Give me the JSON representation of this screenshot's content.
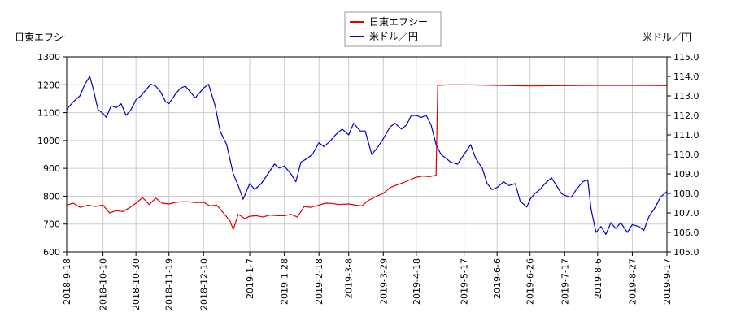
{
  "chart_data": {
    "type": "line",
    "legend_position": "top-center",
    "grid": true,
    "left_axis_title": "日東エフシー",
    "right_axis_title": "米ドル／円",
    "y_left_range": [
      600,
      1300
    ],
    "y_left_ticks": [
      "600",
      "700",
      "800",
      "900",
      "1000",
      "1100",
      "1200",
      "1300"
    ],
    "y_right_range": [
      105.0,
      115.0
    ],
    "y_right_ticks": [
      "105.0",
      "106.0",
      "107.0",
      "108.0",
      "109.0",
      "110.0",
      "111.0",
      "112.0",
      "113.0",
      "114.0",
      "115.0"
    ],
    "x_ticks": [
      "2018-9-18",
      "2018-10-10",
      "2018-10-30",
      "2018-11-19",
      "2018-12-10",
      "2019-1-7",
      "2019-1-28",
      "2019-2-18",
      "2019-3-8",
      "2019-3-29",
      "2019-4-18",
      "2019-5-17",
      "2019-6-6",
      "2019-6-26",
      "2019-7-17",
      "2019-8-6",
      "2019-8-27",
      "2019-9-17"
    ],
    "series": [
      {
        "name": "日東エフシー",
        "color": "#dd0000",
        "axis": "left",
        "points": [
          [
            "2018-9-18",
            768
          ],
          [
            "2018-9-22",
            775
          ],
          [
            "2018-9-26",
            760
          ],
          [
            "2018-10-1",
            768
          ],
          [
            "2018-10-5",
            763
          ],
          [
            "2018-10-10",
            768
          ],
          [
            "2018-10-14",
            740
          ],
          [
            "2018-10-18",
            748
          ],
          [
            "2018-10-22",
            745
          ],
          [
            "2018-10-26",
            758
          ],
          [
            "2018-10-30",
            775
          ],
          [
            "2018-11-3",
            795
          ],
          [
            "2018-11-7",
            770
          ],
          [
            "2018-11-11",
            793
          ],
          [
            "2018-11-15",
            775
          ],
          [
            "2018-11-19",
            772
          ],
          [
            "2018-11-23",
            778
          ],
          [
            "2018-11-27",
            780
          ],
          [
            "2018-12-1",
            780
          ],
          [
            "2018-12-5",
            777
          ],
          [
            "2018-12-10",
            778
          ],
          [
            "2018-12-14",
            765
          ],
          [
            "2018-12-18",
            768
          ],
          [
            "2018-12-22",
            740
          ],
          [
            "2018-12-26",
            712
          ],
          [
            "2018-12-28",
            680
          ],
          [
            "2018-12-31",
            735
          ],
          [
            "2019-1-4",
            720
          ],
          [
            "2019-1-7",
            728
          ],
          [
            "2019-1-11",
            730
          ],
          [
            "2019-1-15",
            725
          ],
          [
            "2019-1-19",
            732
          ],
          [
            "2019-1-24",
            730
          ],
          [
            "2019-1-28",
            730
          ],
          [
            "2019-2-1",
            735
          ],
          [
            "2019-2-5",
            725
          ],
          [
            "2019-2-9",
            763
          ],
          [
            "2019-2-13",
            760
          ],
          [
            "2019-2-18",
            768
          ],
          [
            "2019-2-22",
            775
          ],
          [
            "2019-2-26",
            774
          ],
          [
            "2019-3-2",
            770
          ],
          [
            "2019-3-8",
            772
          ],
          [
            "2019-3-12",
            768
          ],
          [
            "2019-3-16",
            765
          ],
          [
            "2019-3-20",
            785
          ],
          [
            "2019-3-25",
            800
          ],
          [
            "2019-3-29",
            810
          ],
          [
            "2019-4-2",
            830
          ],
          [
            "2019-4-6",
            840
          ],
          [
            "2019-4-10",
            848
          ],
          [
            "2019-4-14",
            858
          ],
          [
            "2019-4-18",
            868
          ],
          [
            "2019-4-22",
            872
          ],
          [
            "2019-4-26",
            870
          ],
          [
            "2019-4-30",
            875
          ],
          [
            "2019-5-1",
            1198
          ],
          [
            "2019-5-8",
            1200
          ],
          [
            "2019-5-17",
            1200
          ],
          [
            "2019-6-6",
            1198
          ],
          [
            "2019-6-26",
            1196
          ],
          [
            "2019-7-17",
            1197
          ],
          [
            "2019-8-6",
            1198
          ],
          [
            "2019-8-27",
            1198
          ],
          [
            "2019-9-17",
            1197
          ]
        ]
      },
      {
        "name": "米ドル／円",
        "color": "#0000cc",
        "axis": "right",
        "points": [
          [
            "2018-9-18",
            112.3
          ],
          [
            "2018-9-22",
            112.7
          ],
          [
            "2018-9-26",
            113.0
          ],
          [
            "2018-9-29",
            113.6
          ],
          [
            "2018-10-2",
            114.0
          ],
          [
            "2018-10-4",
            113.4
          ],
          [
            "2018-10-7",
            112.3
          ],
          [
            "2018-10-10",
            112.1
          ],
          [
            "2018-10-12",
            111.9
          ],
          [
            "2018-10-15",
            112.5
          ],
          [
            "2018-10-18",
            112.4
          ],
          [
            "2018-10-21",
            112.6
          ],
          [
            "2018-10-24",
            112.0
          ],
          [
            "2018-10-27",
            112.3
          ],
          [
            "2018-10-30",
            112.8
          ],
          [
            "2018-11-2",
            113.0
          ],
          [
            "2018-11-5",
            113.3
          ],
          [
            "2018-11-8",
            113.6
          ],
          [
            "2018-11-11",
            113.5
          ],
          [
            "2018-11-14",
            113.2
          ],
          [
            "2018-11-17",
            112.7
          ],
          [
            "2018-11-19",
            112.6
          ],
          [
            "2018-11-23",
            113.1
          ],
          [
            "2018-11-26",
            113.4
          ],
          [
            "2018-11-29",
            113.5
          ],
          [
            "2018-12-2",
            113.2
          ],
          [
            "2018-12-5",
            112.9
          ],
          [
            "2018-12-8",
            113.2
          ],
          [
            "2018-12-10",
            113.4
          ],
          [
            "2018-12-13",
            113.6
          ],
          [
            "2018-12-17",
            112.5
          ],
          [
            "2018-12-20",
            111.2
          ],
          [
            "2018-12-24",
            110.5
          ],
          [
            "2018-12-28",
            109.0
          ],
          [
            "2018-12-31",
            108.4
          ],
          [
            "2019-1-3",
            107.7
          ],
          [
            "2019-1-7",
            108.5
          ],
          [
            "2019-1-10",
            108.2
          ],
          [
            "2019-1-14",
            108.5
          ],
          [
            "2019-1-18",
            109.0
          ],
          [
            "2019-1-22",
            109.5
          ],
          [
            "2019-1-25",
            109.3
          ],
          [
            "2019-1-28",
            109.4
          ],
          [
            "2019-2-1",
            109.0
          ],
          [
            "2019-2-4",
            108.6
          ],
          [
            "2019-2-7",
            109.6
          ],
          [
            "2019-2-11",
            109.8
          ],
          [
            "2019-2-14",
            110.0
          ],
          [
            "2019-2-18",
            110.6
          ],
          [
            "2019-2-21",
            110.4
          ],
          [
            "2019-2-25",
            110.7
          ],
          [
            "2019-2-28",
            111.0
          ],
          [
            "2019-3-4",
            111.3
          ],
          [
            "2019-3-8",
            111.0
          ],
          [
            "2019-3-11",
            111.6
          ],
          [
            "2019-3-15",
            111.2
          ],
          [
            "2019-3-18",
            111.2
          ],
          [
            "2019-3-22",
            110.0
          ],
          [
            "2019-3-25",
            110.3
          ],
          [
            "2019-3-29",
            110.8
          ],
          [
            "2019-4-2",
            111.4
          ],
          [
            "2019-4-5",
            111.6
          ],
          [
            "2019-4-9",
            111.3
          ],
          [
            "2019-4-12",
            111.5
          ],
          [
            "2019-4-15",
            112.0
          ],
          [
            "2019-4-18",
            112.0
          ],
          [
            "2019-4-21",
            111.9
          ],
          [
            "2019-4-24",
            112.0
          ],
          [
            "2019-4-27",
            111.5
          ],
          [
            "2019-4-30",
            110.5
          ],
          [
            "2019-5-3",
            110.0
          ],
          [
            "2019-5-6",
            109.8
          ],
          [
            "2019-5-9",
            109.6
          ],
          [
            "2019-5-13",
            109.5
          ],
          [
            "2019-5-17",
            110.0
          ],
          [
            "2019-5-21",
            110.5
          ],
          [
            "2019-5-24",
            109.8
          ],
          [
            "2019-5-28",
            109.3
          ],
          [
            "2019-5-31",
            108.5
          ],
          [
            "2019-6-3",
            108.2
          ],
          [
            "2019-6-6",
            108.3
          ],
          [
            "2019-6-10",
            108.6
          ],
          [
            "2019-6-13",
            108.4
          ],
          [
            "2019-6-17",
            108.5
          ],
          [
            "2019-6-20",
            107.6
          ],
          [
            "2019-6-24",
            107.3
          ],
          [
            "2019-6-26",
            107.7
          ],
          [
            "2019-6-29",
            108.0
          ],
          [
            "2019-7-2",
            108.2
          ],
          [
            "2019-7-5",
            108.5
          ],
          [
            "2019-7-9",
            108.8
          ],
          [
            "2019-7-12",
            108.4
          ],
          [
            "2019-7-15",
            108.0
          ],
          [
            "2019-7-17",
            107.9
          ],
          [
            "2019-7-21",
            107.8
          ],
          [
            "2019-7-24",
            108.2
          ],
          [
            "2019-7-28",
            108.6
          ],
          [
            "2019-7-31",
            108.7
          ],
          [
            "2019-8-2",
            107.2
          ],
          [
            "2019-8-5",
            106.0
          ],
          [
            "2019-8-8",
            106.3
          ],
          [
            "2019-8-11",
            105.9
          ],
          [
            "2019-8-14",
            106.5
          ],
          [
            "2019-8-17",
            106.2
          ],
          [
            "2019-8-20",
            106.5
          ],
          [
            "2019-8-24",
            106.0
          ],
          [
            "2019-8-27",
            106.4
          ],
          [
            "2019-8-31",
            106.3
          ],
          [
            "2019-9-3",
            106.1
          ],
          [
            "2019-9-6",
            106.8
          ],
          [
            "2019-9-10",
            107.3
          ],
          [
            "2019-9-13",
            107.8
          ],
          [
            "2019-9-17",
            108.1
          ]
        ]
      }
    ]
  }
}
